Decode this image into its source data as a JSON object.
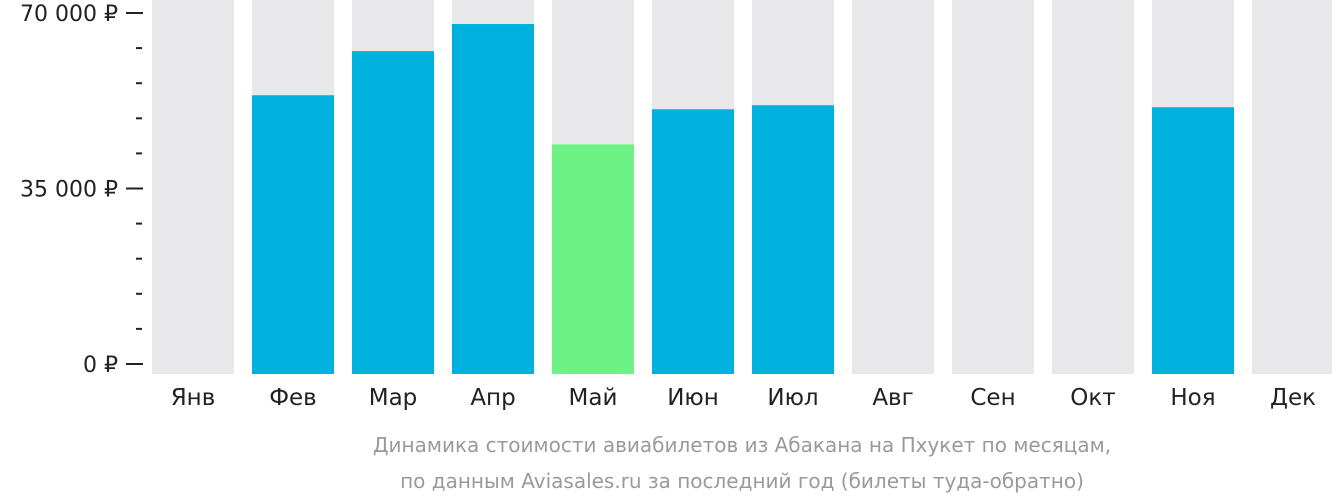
{
  "chart_data": {
    "type": "bar",
    "categories": [
      "Янв",
      "Фев",
      "Мар",
      "Апр",
      "Май",
      "Июн",
      "Июл",
      "Авг",
      "Сен",
      "Окт",
      "Ноя",
      "Дек"
    ],
    "values": [
      null,
      53600,
      62400,
      67800,
      43800,
      50800,
      51600,
      null,
      null,
      null,
      51200,
      null
    ],
    "highlight_index": 4,
    "ylim": [
      0,
      70000
    ],
    "yticks": [
      {
        "value": 0,
        "label": "0 ₽"
      },
      {
        "value": 35000,
        "label": "35 000 ₽"
      },
      {
        "value": 70000,
        "label": "70 000 ₽"
      }
    ],
    "minor_tick_step": 7000,
    "caption_lines": [
      "Динамика стоимости авиабилетов из Абакана на Пхукет по месяцам,",
      "по данным Aviasales.ru за последний год (билеты туда-обратно)"
    ],
    "colors": {
      "bar": "#00b1dd",
      "highlight": "#6cf285",
      "background_column": "#e8e8ea",
      "axis": "#222222",
      "caption": "#9a9a9a"
    }
  }
}
